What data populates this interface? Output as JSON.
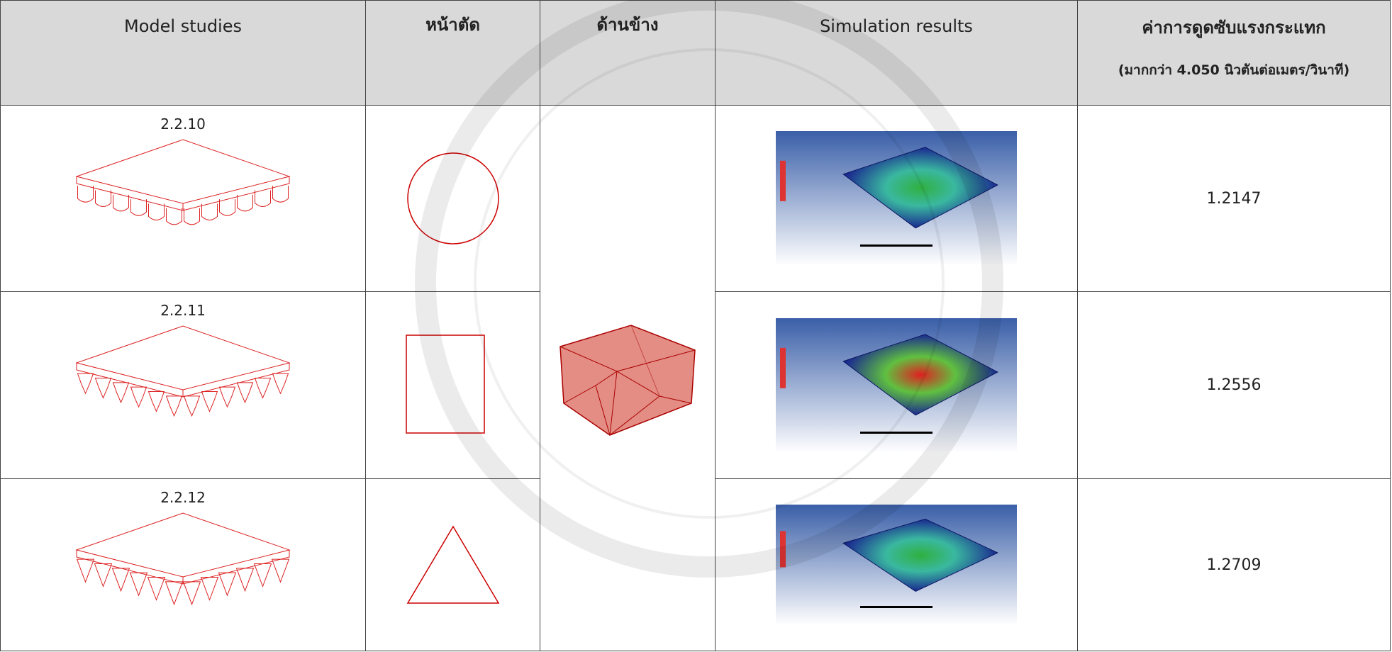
{
  "header": {
    "columns": [
      "Model studies",
      "หน้าตัด",
      "ด้านข้าง",
      "Simulation results"
    ],
    "absorption_title": "ค่าการดูดซับแรงกระแทก",
    "absorption_note": "(มากกว่า 4.050 นิวตันต่อเมตร/วินาที)"
  },
  "table": {
    "rows": [
      [
        "2.2.10",
        "1.2147"
      ],
      [
        "2.2.11",
        "1.2556"
      ],
      [
        "2.2.12",
        "1.2709"
      ]
    ]
  }
}
